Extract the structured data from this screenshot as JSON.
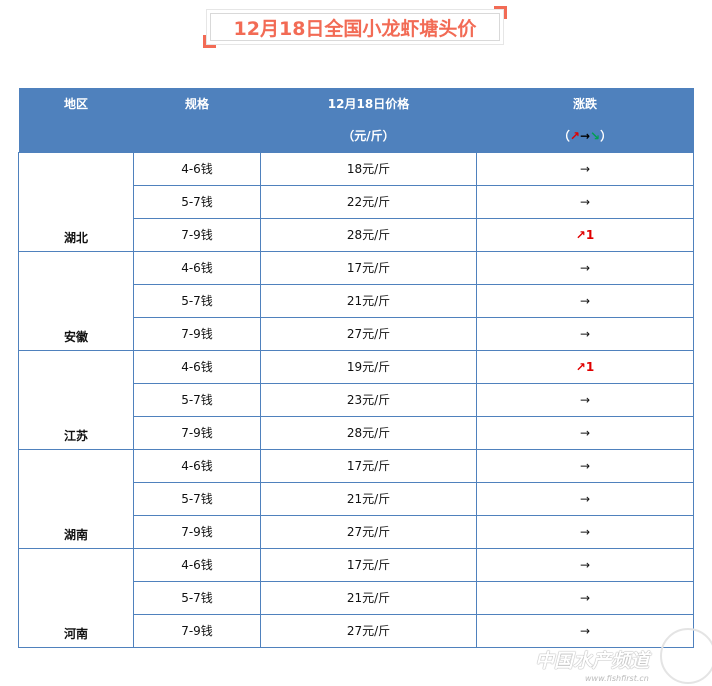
{
  "title": "12月18日全国小龙虾塘头价",
  "headers": {
    "region": "地区",
    "spec": "规格",
    "price": "12月18日价格",
    "price_unit": "（元/斤）",
    "change": "涨跌",
    "legend_open": "（",
    "legend_up": "↗",
    "legend_flat": "→",
    "legend_down": "↘",
    "legend_close": "）"
  },
  "colors": {
    "header_bg": "#4f81bd",
    "up": "#e00000",
    "down": "#00a050",
    "title": "#f26b55"
  },
  "groups": [
    {
      "region": "湖北",
      "rows": [
        {
          "spec": "4-6钱",
          "price": "18元/斤",
          "change": "→",
          "dir": "flat"
        },
        {
          "spec": "5-7钱",
          "price": "22元/斤",
          "change": "→",
          "dir": "flat"
        },
        {
          "spec": "7-9钱",
          "price": "28元/斤",
          "change": "↗1",
          "dir": "up"
        }
      ]
    },
    {
      "region": "安徽",
      "rows": [
        {
          "spec": "4-6钱",
          "price": "17元/斤",
          "change": "→",
          "dir": "flat"
        },
        {
          "spec": "5-7钱",
          "price": "21元/斤",
          "change": "→",
          "dir": "flat"
        },
        {
          "spec": "7-9钱",
          "price": "27元/斤",
          "change": "→",
          "dir": "flat"
        }
      ]
    },
    {
      "region": "江苏",
      "rows": [
        {
          "spec": "4-6钱",
          "price": "19元/斤",
          "change": "↗1",
          "dir": "up"
        },
        {
          "spec": "5-7钱",
          "price": "23元/斤",
          "change": "→",
          "dir": "flat"
        },
        {
          "spec": "7-9钱",
          "price": "28元/斤",
          "change": "→",
          "dir": "flat"
        }
      ]
    },
    {
      "region": "湖南",
      "rows": [
        {
          "spec": "4-6钱",
          "price": "17元/斤",
          "change": "→",
          "dir": "flat"
        },
        {
          "spec": "5-7钱",
          "price": "21元/斤",
          "change": "→",
          "dir": "flat"
        },
        {
          "spec": "7-9钱",
          "price": "27元/斤",
          "change": "→",
          "dir": "flat"
        }
      ]
    },
    {
      "region": "河南",
      "rows": [
        {
          "spec": "4-6钱",
          "price": "17元/斤",
          "change": "→",
          "dir": "flat"
        },
        {
          "spec": "5-7钱",
          "price": "21元/斤",
          "change": "→",
          "dir": "flat"
        },
        {
          "spec": "7-9钱",
          "price": "27元/斤",
          "change": "→",
          "dir": "flat"
        }
      ]
    }
  ],
  "watermark": {
    "text": "中国水产频道",
    "url": "www.fishfirst.cn"
  }
}
